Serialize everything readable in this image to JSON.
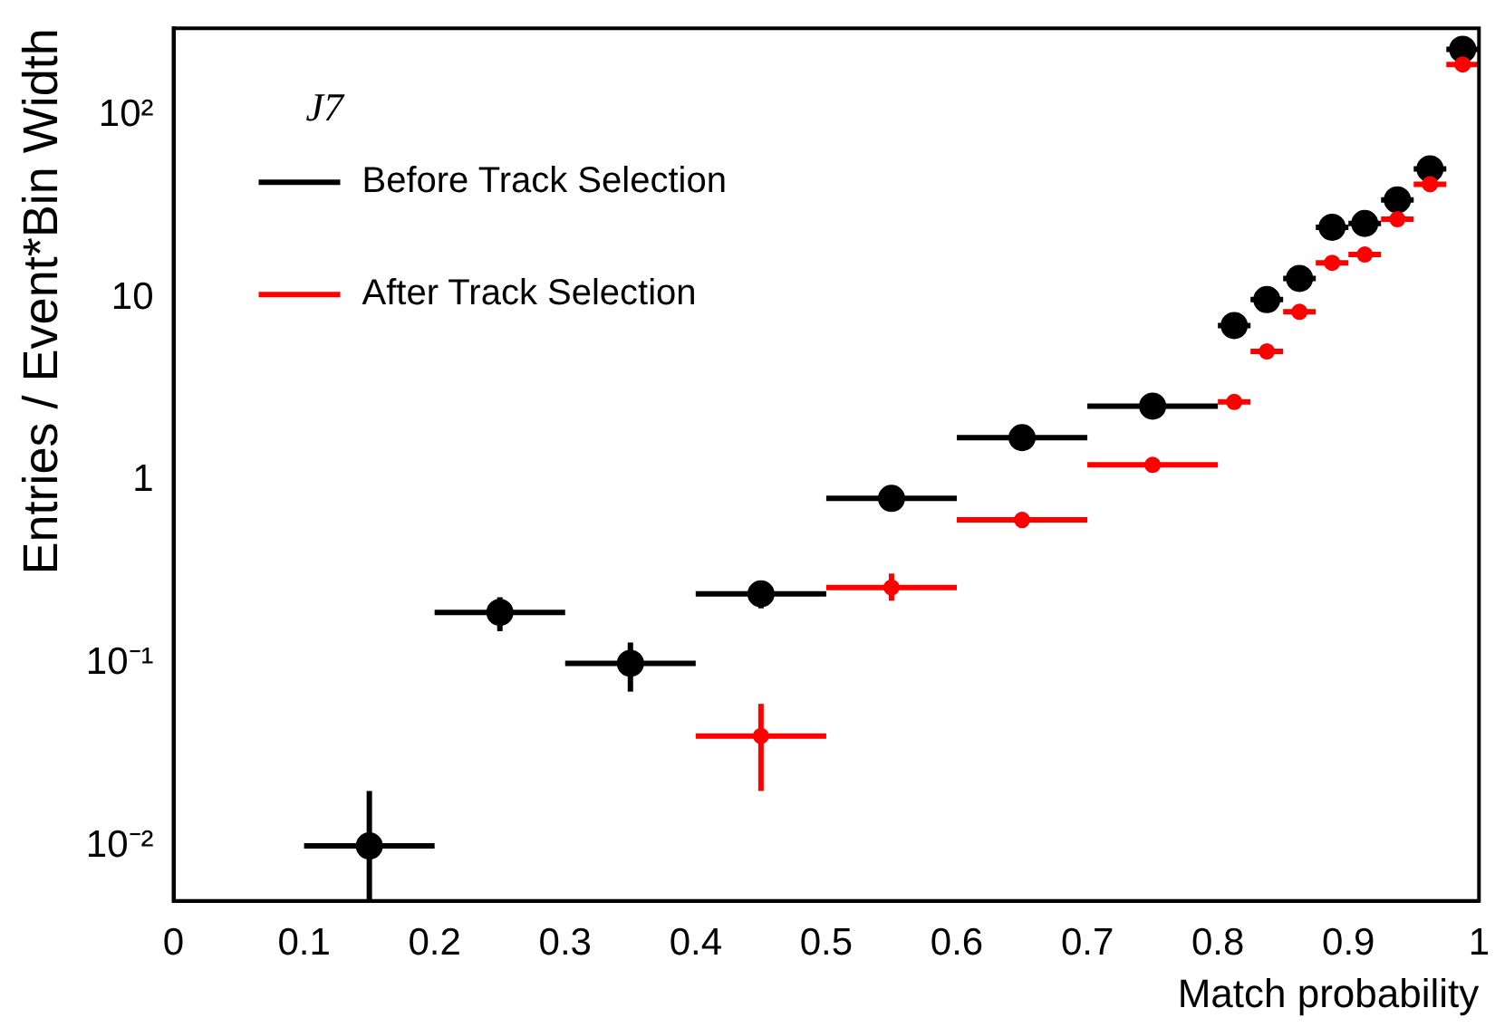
{
  "chart_data": {
    "type": "scatter",
    "xlabel": "Match probability",
    "ylabel": "Entries / Event*Bin Width",
    "annotations": [
      "J7"
    ],
    "xlim": [
      0,
      1
    ],
    "xticks": [
      0,
      0.1,
      0.2,
      0.3,
      0.4,
      0.5,
      0.6,
      0.7,
      0.8,
      0.9,
      1
    ],
    "ylim": [
      0.005,
      300
    ],
    "yticks": [
      {
        "value": 0.01,
        "label": "10⁻²"
      },
      {
        "value": 0.1,
        "label": "10⁻¹"
      },
      1,
      10,
      {
        "value": 100,
        "label": "10²"
      }
    ],
    "log": "y",
    "grid": false,
    "legend": "top left",
    "marker": "circle",
    "series": [
      {
        "name": "Before Track Selection",
        "color": "#000000",
        "x": [
          0.15,
          0.25,
          0.35,
          0.45,
          0.55,
          0.65,
          0.75,
          0.8125,
          0.8375,
          0.8625,
          0.8875,
          0.9125,
          0.9375,
          0.9625,
          0.9875
        ],
        "values": [
          0.01,
          0.19,
          0.1,
          0.24,
          0.8,
          1.72,
          2.56,
          7.07,
          9.8,
          12.8,
          24.4,
          25.6,
          34.5,
          51,
          230
        ],
        "xerrors": [
          0.05,
          0.05,
          0.05,
          0.05,
          0.05,
          0.05,
          0.05,
          0.0125,
          0.0125,
          0.0125,
          0.0125,
          0.0125,
          0.0125,
          0.0125,
          0.0125
        ],
        "errors": [
          [
            0.005,
            0.02
          ],
          [
            0.15,
            0.23
          ],
          [
            0.07,
            0.13
          ],
          [
            0.2,
            0.28
          ],
          null,
          null,
          null,
          null,
          null,
          null,
          null,
          null,
          null,
          null,
          null
        ]
      },
      {
        "name": "After Track Selection",
        "color": "#ff0000",
        "x": [
          0.45,
          0.55,
          0.65,
          0.75,
          0.8125,
          0.8375,
          0.8625,
          0.8875,
          0.9125,
          0.9375,
          0.9625,
          0.9875
        ],
        "values": [
          0.04,
          0.26,
          0.61,
          1.22,
          2.7,
          5.1,
          8.4,
          15.6,
          17.3,
          27,
          42,
          190
        ],
        "xerrors": [
          0.05,
          0.05,
          0.05,
          0.05,
          0.0125,
          0.0125,
          0.0125,
          0.0125,
          0.0125,
          0.0125,
          0.0125,
          0.0125
        ],
        "errors": [
          [
            0.02,
            0.06
          ],
          [
            0.22,
            0.31
          ],
          [
            0.55,
            0.67
          ],
          null,
          null,
          null,
          null,
          null,
          null,
          null,
          null,
          null
        ]
      }
    ]
  }
}
